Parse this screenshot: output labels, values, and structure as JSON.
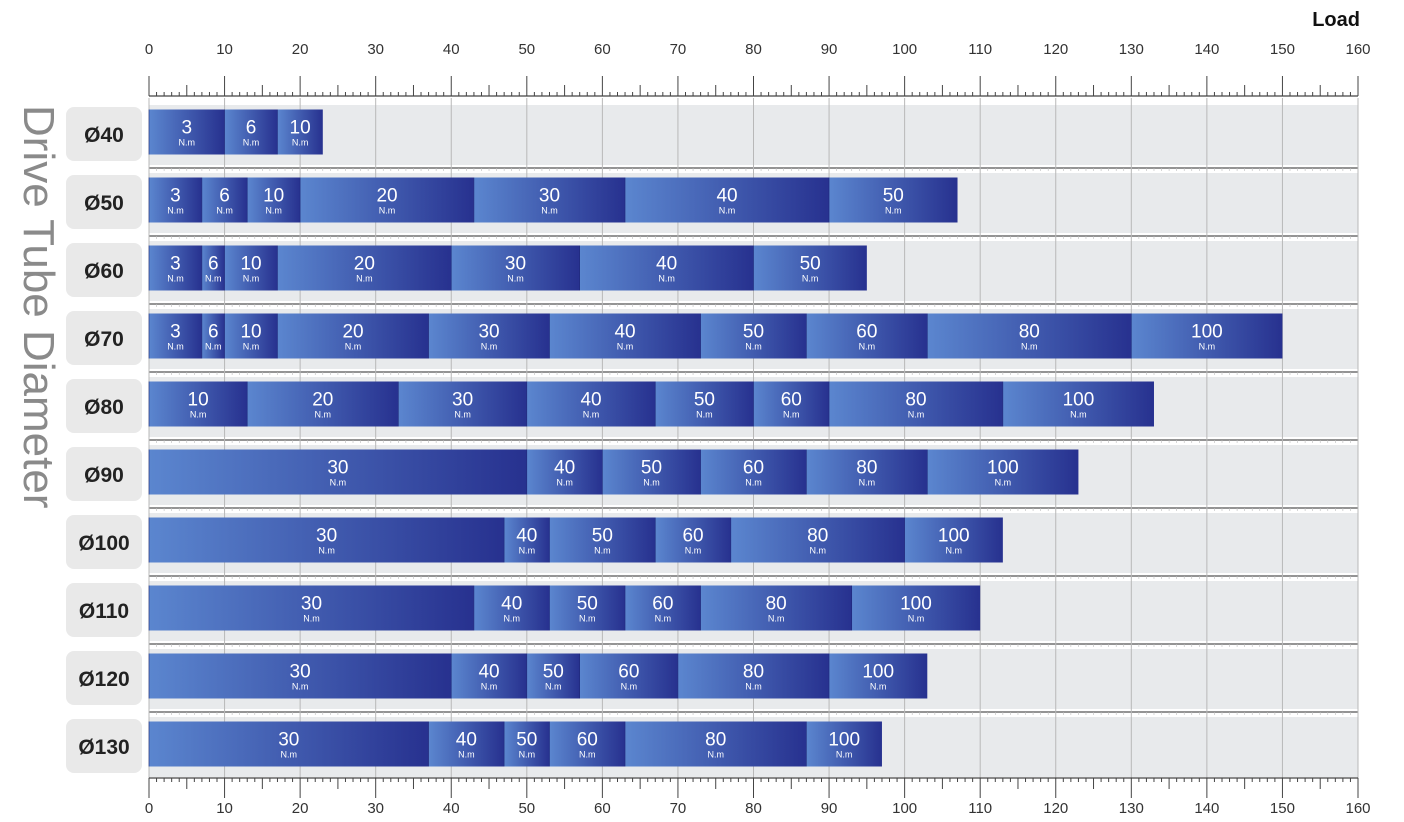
{
  "chart_data": {
    "type": "bar",
    "orientation": "horizontal-stacked",
    "xlabel": "Load",
    "ylabel": "Drive Tube Diameter",
    "xlim": [
      0,
      160
    ],
    "xticks": [
      "0",
      "10",
      "20",
      "30",
      "40",
      "50",
      "60",
      "70",
      "80",
      "90",
      "100",
      "110",
      "120",
      "130",
      "140",
      "150",
      "160"
    ],
    "unit_label": "N.m",
    "grid": true,
    "colors": {
      "bar_light": "#5b86cf",
      "bar_dark": "#27318f",
      "row_bg": "#e8eaec",
      "label_bg": "#e9e9e9",
      "grid": "#b8b8b8"
    },
    "rows": [
      {
        "label": "Ø40",
        "segments": [
          {
            "value": "3",
            "start": 0,
            "end": 10
          },
          {
            "value": "6",
            "start": 10,
            "end": 17
          },
          {
            "value": "10",
            "start": 17,
            "end": 23
          }
        ]
      },
      {
        "label": "Ø50",
        "segments": [
          {
            "value": "3",
            "start": 0,
            "end": 7
          },
          {
            "value": "6",
            "start": 7,
            "end": 13
          },
          {
            "value": "10",
            "start": 13,
            "end": 20
          },
          {
            "value": "20",
            "start": 20,
            "end": 43
          },
          {
            "value": "30",
            "start": 43,
            "end": 63
          },
          {
            "value": "40",
            "start": 63,
            "end": 90
          },
          {
            "value": "50",
            "start": 90,
            "end": 107
          }
        ]
      },
      {
        "label": "Ø60",
        "segments": [
          {
            "value": "3",
            "start": 0,
            "end": 7
          },
          {
            "value": "6",
            "start": 7,
            "end": 10
          },
          {
            "value": "10",
            "start": 10,
            "end": 17
          },
          {
            "value": "20",
            "start": 17,
            "end": 40
          },
          {
            "value": "30",
            "start": 40,
            "end": 57
          },
          {
            "value": "40",
            "start": 57,
            "end": 80
          },
          {
            "value": "50",
            "start": 80,
            "end": 95
          }
        ]
      },
      {
        "label": "Ø70",
        "segments": [
          {
            "value": "3",
            "start": 0,
            "end": 7
          },
          {
            "value": "6",
            "start": 7,
            "end": 10
          },
          {
            "value": "10",
            "start": 10,
            "end": 17
          },
          {
            "value": "20",
            "start": 17,
            "end": 37
          },
          {
            "value": "30",
            "start": 37,
            "end": 53
          },
          {
            "value": "40",
            "start": 53,
            "end": 73
          },
          {
            "value": "50",
            "start": 73,
            "end": 87
          },
          {
            "value": "60",
            "start": 87,
            "end": 103
          },
          {
            "value": "80",
            "start": 103,
            "end": 130
          },
          {
            "value": "100",
            "start": 130,
            "end": 150
          }
        ]
      },
      {
        "label": "Ø80",
        "segments": [
          {
            "value": "10",
            "start": 0,
            "end": 13
          },
          {
            "value": "20",
            "start": 13,
            "end": 33
          },
          {
            "value": "30",
            "start": 33,
            "end": 50
          },
          {
            "value": "40",
            "start": 50,
            "end": 67
          },
          {
            "value": "50",
            "start": 67,
            "end": 80
          },
          {
            "value": "60",
            "start": 80,
            "end": 90
          },
          {
            "value": "80",
            "start": 90,
            "end": 113
          },
          {
            "value": "100",
            "start": 113,
            "end": 133
          }
        ]
      },
      {
        "label": "Ø90",
        "segments": [
          {
            "value": "30",
            "start": 0,
            "end": 50
          },
          {
            "value": "40",
            "start": 50,
            "end": 60
          },
          {
            "value": "50",
            "start": 60,
            "end": 73
          },
          {
            "value": "60",
            "start": 73,
            "end": 87
          },
          {
            "value": "80",
            "start": 87,
            "end": 103
          },
          {
            "value": "100",
            "start": 103,
            "end": 123
          }
        ]
      },
      {
        "label": "Ø100",
        "segments": [
          {
            "value": "30",
            "start": 0,
            "end": 47
          },
          {
            "value": "40",
            "start": 47,
            "end": 53
          },
          {
            "value": "50",
            "start": 53,
            "end": 67
          },
          {
            "value": "60",
            "start": 67,
            "end": 77
          },
          {
            "value": "80",
            "start": 77,
            "end": 100
          },
          {
            "value": "100",
            "start": 100,
            "end": 113
          }
        ]
      },
      {
        "label": "Ø110",
        "segments": [
          {
            "value": "30",
            "start": 0,
            "end": 43
          },
          {
            "value": "40",
            "start": 43,
            "end": 53
          },
          {
            "value": "50",
            "start": 53,
            "end": 63
          },
          {
            "value": "60",
            "start": 63,
            "end": 73
          },
          {
            "value": "80",
            "start": 73,
            "end": 93
          },
          {
            "value": "100",
            "start": 93,
            "end": 110
          }
        ]
      },
      {
        "label": "Ø120",
        "segments": [
          {
            "value": "30",
            "start": 0,
            "end": 40
          },
          {
            "value": "40",
            "start": 40,
            "end": 50
          },
          {
            "value": "50",
            "start": 50,
            "end": 57
          },
          {
            "value": "60",
            "start": 57,
            "end": 70
          },
          {
            "value": "80",
            "start": 70,
            "end": 90
          },
          {
            "value": "100",
            "start": 90,
            "end": 103
          }
        ]
      },
      {
        "label": "Ø130",
        "segments": [
          {
            "value": "30",
            "start": 0,
            "end": 37
          },
          {
            "value": "40",
            "start": 37,
            "end": 47
          },
          {
            "value": "50",
            "start": 47,
            "end": 53
          },
          {
            "value": "60",
            "start": 53,
            "end": 63
          },
          {
            "value": "80",
            "start": 63,
            "end": 87
          },
          {
            "value": "100",
            "start": 87,
            "end": 97
          }
        ]
      }
    ]
  }
}
